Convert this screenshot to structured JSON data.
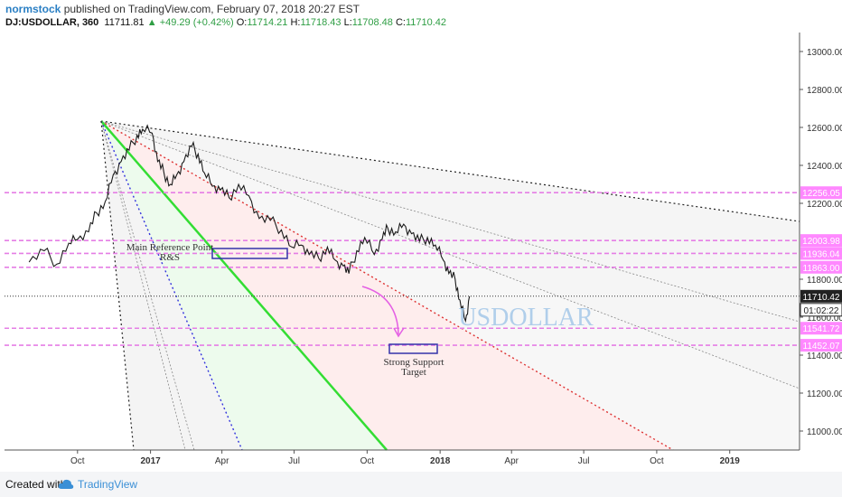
{
  "header": {
    "author": "normstock",
    "published": " published on TradingView.com, February 07, 2018 20:27 EST",
    "symbol": "DJ:USDOLLAR, 360",
    "last": "11711.81",
    "change_arrow": "▲",
    "change": "+49.29 (+0.42%)",
    "open_label": "O:",
    "open": "11714.21",
    "high_label": "H:",
    "high": "11718.43",
    "low_label": "L:",
    "low": "11708.48",
    "close_label": "C:",
    "close": "11710.42"
  },
  "footer": {
    "created": "Created with",
    "brand": "TradingView"
  },
  "colors": {
    "price": "#1a1a1a",
    "hline": "#e57ee5",
    "green": "#33dd33",
    "red": "#dd3333",
    "blue": "#3333dd",
    "dark": "#222222",
    "label_bg": "#ff88ff",
    "watermark": "#9fc5e8",
    "curve": "#e45fe4"
  },
  "annotations": {
    "reference": [
      "Main Reference Point",
      "R&S"
    ],
    "target": [
      "Strong Support",
      "Target"
    ],
    "watermark": "USDOLLAR"
  },
  "chart_data": {
    "type": "line",
    "title": "",
    "x_ticks": [
      {
        "label": "Oct",
        "date": "2016-10-01",
        "bold": false
      },
      {
        "label": "2017",
        "date": "2017-01-01",
        "bold": true
      },
      {
        "label": "Apr",
        "date": "2017-04-01",
        "bold": false
      },
      {
        "label": "Jul",
        "date": "2017-07-01",
        "bold": false
      },
      {
        "label": "Oct",
        "date": "2017-10-01",
        "bold": false
      },
      {
        "label": "2018",
        "date": "2018-01-01",
        "bold": true
      },
      {
        "label": "Apr",
        "date": "2018-04-01",
        "bold": false
      },
      {
        "label": "Jul",
        "date": "2018-07-01",
        "bold": false
      },
      {
        "label": "Oct",
        "date": "2018-10-01",
        "bold": false
      },
      {
        "label": "2019",
        "date": "2019-01-01",
        "bold": true
      }
    ],
    "y_ticks": [
      "13000.00",
      "12800.00",
      "12600.00",
      "12400.00",
      "12200.00",
      "11800.00",
      "11600.00",
      "11400.00",
      "11200.00",
      "11000.00"
    ],
    "ylim": [
      10900,
      13100
    ],
    "series": [
      {
        "dates": [
          "2016-08-01",
          "2016-08-20",
          "2016-09-05",
          "2016-09-20",
          "2016-10-01",
          "2016-10-15",
          "2016-10-25",
          "2016-11-05",
          "2016-11-15",
          "2016-11-25",
          "2016-12-05",
          "2016-12-15",
          "2016-12-22",
          "2017-01-03",
          "2017-01-10",
          "2017-01-18",
          "2017-01-26",
          "2017-02-03",
          "2017-02-12",
          "2017-02-22",
          "2017-03-02",
          "2017-03-10",
          "2017-03-20",
          "2017-03-30",
          "2017-04-10",
          "2017-04-22",
          "2017-05-05",
          "2017-05-18",
          "2017-06-01",
          "2017-06-15",
          "2017-06-28",
          "2017-07-10",
          "2017-07-20",
          "2017-08-01",
          "2017-08-12",
          "2017-08-22",
          "2017-09-01",
          "2017-09-08",
          "2017-09-18",
          "2017-09-28",
          "2017-10-10",
          "2017-10-20",
          "2017-10-27",
          "2017-11-06",
          "2017-11-16",
          "2017-11-26",
          "2017-12-06",
          "2017-12-16",
          "2017-12-26",
          "2018-01-05",
          "2018-01-12",
          "2018-01-20",
          "2018-01-26",
          "2018-02-02",
          "2018-02-07"
        ],
        "values": [
          11890,
          11950,
          11880,
          11990,
          12010,
          12050,
          12150,
          12210,
          12350,
          12420,
          12480,
          12560,
          12590,
          12570,
          12420,
          12360,
          12300,
          12350,
          12420,
          12500,
          12460,
          12360,
          12290,
          12270,
          12230,
          12300,
          12240,
          12120,
          12110,
          12060,
          11970,
          11980,
          11930,
          11910,
          11970,
          11900,
          11870,
          11830,
          11950,
          12020,
          11930,
          12010,
          12070,
          12050,
          12090,
          12040,
          12000,
          12020,
          11980,
          11900,
          11830,
          11800,
          11690,
          11580,
          11710
        ]
      }
    ],
    "horizontal_levels": [
      {
        "value": 12256.05,
        "label": "12256.05"
      },
      {
        "value": 12003.98,
        "label": "12003.98"
      },
      {
        "value": 11936.04,
        "label": "11936.04"
      },
      {
        "value": 11863.0,
        "label": "11863.00"
      },
      {
        "value": 11541.72,
        "label": "11541.72"
      },
      {
        "value": 11452.07,
        "label": "11452.07"
      }
    ],
    "last_price": "11710.42",
    "countdown": "01:02:22"
  }
}
